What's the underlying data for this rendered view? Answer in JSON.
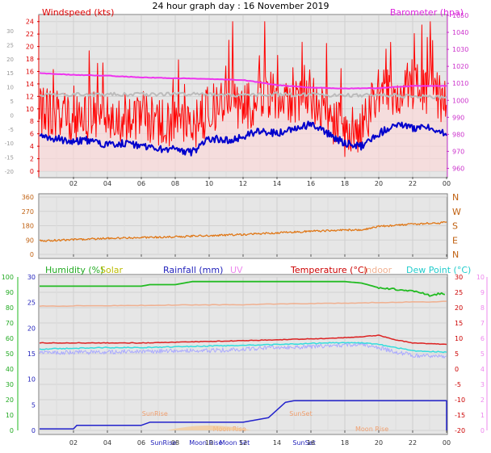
{
  "title": "24 hour graph day : 16 November 2019",
  "colors": {
    "windspeed": "#ff0000",
    "windspeed_fill": "#ffd7d7",
    "barometer": "#ee33ee",
    "gust_avg": "#bbbbbb",
    "wind_dir": "#e07818",
    "humidity": "#22bb22",
    "solar": "#cccc00",
    "rainfall": "#2222cc",
    "uv": "#ee88ee",
    "temperature": "#dd2222",
    "indoor": "#f0b090",
    "dew_point": "#33dddd",
    "panel_bg": "#e6e6e6"
  },
  "chart_data": [
    {
      "type": "line",
      "panel": "wind",
      "title": "",
      "left_axis_label": "Windspeed (kts)",
      "right_axis_label": "Barometer (hpa)",
      "x_ticks": [
        "02",
        "04",
        "06",
        "08",
        "10",
        "12",
        "14",
        "16",
        "18",
        "20",
        "22",
        "00"
      ],
      "left_axis_inner_ticks": [
        "0",
        "2",
        "4",
        "6",
        "8",
        "10",
        "12",
        "14",
        "16",
        "18",
        "20",
        "22",
        "24"
      ],
      "left_axis_outer_ticks": [
        "-20",
        "-15",
        "-10",
        "-5",
        "0",
        "5",
        "10",
        "15",
        "20",
        "25",
        "30"
      ],
      "right_axis_ticks": [
        "960",
        "970",
        "980",
        "990",
        "1000",
        "1010",
        "1020",
        "1030",
        "1040",
        "1050"
      ],
      "ylim_left": [
        0,
        25
      ],
      "ylim_right": [
        955,
        1050
      ],
      "series": [
        {
          "name": "Windspeed",
          "x_hours": [
            0,
            1,
            2,
            3,
            4,
            5,
            6,
            7,
            8,
            9,
            10,
            11,
            12,
            13,
            14,
            15,
            16,
            17,
            18,
            19,
            20,
            21,
            22,
            23,
            24
          ],
          "values": [
            9.5,
            9,
            8.5,
            9,
            8,
            8.5,
            9,
            8,
            7.5,
            6.5,
            10,
            11,
            10,
            12,
            12,
            11,
            12,
            9,
            6,
            7,
            13,
            13,
            14,
            13,
            11
          ]
        },
        {
          "name": "Barometer",
          "x_hours": [
            0,
            2,
            4,
            6,
            8,
            10,
            12,
            14,
            16,
            18,
            20,
            22,
            24
          ],
          "values": [
            1016,
            1015,
            1014.5,
            1013.5,
            1013,
            1012.5,
            1012,
            1009,
            1007.5,
            1007,
            1007.2,
            1008.5,
            1008.5
          ]
        },
        {
          "name": "Average",
          "x_hours": [
            0,
            2,
            4,
            6,
            8,
            10,
            12,
            14,
            16,
            18,
            20,
            22,
            24
          ],
          "values": [
            12.3,
            12.3,
            12.3,
            12.3,
            12.4,
            12.3,
            12.2,
            12.3,
            12.3,
            12.2,
            12.2,
            12,
            11.8
          ]
        },
        {
          "name": "Wind (lower)",
          "x_hours": [
            0,
            1,
            2,
            3,
            4,
            5,
            6,
            7,
            8,
            9,
            10,
            11,
            12,
            13,
            14,
            15,
            16,
            17,
            18,
            19,
            20,
            21,
            22,
            23,
            24
          ],
          "values": [
            5.5,
            5.2,
            4.8,
            5,
            4.2,
            4.5,
            4,
            3.5,
            3.5,
            3,
            5.3,
            5,
            5.5,
            6.5,
            6,
            7,
            7.5,
            6,
            4.5,
            4,
            6,
            7.5,
            6.8,
            7,
            6
          ]
        }
      ]
    },
    {
      "type": "line",
      "panel": "wind-direction",
      "left_axis_ticks": [
        "0",
        "90",
        "180",
        "270",
        "360"
      ],
      "right_axis_labels": [
        "N",
        "W",
        "S",
        "E",
        "N"
      ],
      "ylim": [
        0,
        360
      ],
      "series": [
        {
          "name": "Wind Direction",
          "x_hours": [
            0,
            2,
            4,
            6,
            8,
            10,
            12,
            14,
            16,
            18,
            19,
            20,
            22,
            24
          ],
          "values": [
            85,
            92,
            100,
            105,
            110,
            118,
            125,
            135,
            145,
            152,
            155,
            175,
            190,
            200
          ]
        }
      ]
    },
    {
      "type": "line",
      "panel": "temperature",
      "legend": [
        "Humidity (%)",
        "Solar",
        "Rainfall (mm)",
        "UV",
        "Temperature (°C)",
        "Indoor",
        "Dew Point (°C)"
      ],
      "left_axis_outer_ticks": [
        "0",
        "10",
        "20",
        "30",
        "40",
        "50",
        "60",
        "70",
        "80",
        "90",
        "100"
      ],
      "left_axis_inner_ticks": [
        "0",
        "5",
        "10",
        "15",
        "20",
        "25",
        "30"
      ],
      "right_axis_inner_ticks": [
        "30",
        "25",
        "20",
        "15",
        "10",
        "5",
        "0",
        "-5",
        "-10",
        "-15",
        "-20"
      ],
      "right_axis_outer_ticks": [
        "10",
        "9",
        "8",
        "7",
        "6",
        "5",
        "4",
        "3",
        "2",
        "1",
        "0"
      ],
      "ylim_temp": [
        -20,
        30
      ],
      "ylim_humidity": [
        0,
        100
      ],
      "ylim_rain": [
        0,
        30
      ],
      "annotations": [
        "SunRise",
        "SunSet",
        "Moon Rise",
        "Moon Set",
        "SunRise",
        "Moon Set",
        "SunSet",
        "Moon Rise"
      ],
      "series": [
        {
          "name": "Humidity",
          "x_hours": [
            0,
            6,
            6.5,
            8,
            9,
            18,
            19,
            20,
            21,
            22,
            22.5,
            23,
            23.5,
            24
          ],
          "values": [
            94,
            94,
            95,
            95,
            97,
            97,
            96,
            93,
            92,
            91,
            90,
            88,
            89,
            89
          ]
        },
        {
          "name": "Temperature",
          "x_hours": [
            0,
            4,
            6,
            10,
            14,
            17,
            19,
            20,
            21,
            22,
            24
          ],
          "values": [
            8.5,
            8.5,
            8.5,
            9,
            9.5,
            10,
            10.5,
            11,
            9.5,
            8.5,
            8
          ]
        },
        {
          "name": "Indoor",
          "x_hours": [
            0,
            12,
            24
          ],
          "values": [
            20.5,
            21,
            22
          ]
        },
        {
          "name": "Dew Point",
          "x_hours": [
            0,
            4,
            6,
            10,
            14,
            17,
            19,
            20,
            21,
            22,
            24
          ],
          "values": [
            6.5,
            7,
            7,
            7.5,
            8,
            8.5,
            8.5,
            8,
            7,
            6,
            5.5
          ]
        },
        {
          "name": "Dew Point (avg)",
          "x_hours": [
            0,
            4,
            6,
            10,
            14,
            17,
            19,
            20,
            21,
            22,
            24
          ],
          "values": [
            5.3,
            5.5,
            5.8,
            6,
            7,
            7.5,
            8,
            7,
            5.5,
            4.5,
            4
          ]
        },
        {
          "name": "Rainfall",
          "x_hours": [
            0,
            2,
            2.2,
            6,
            6.5,
            12,
            13.5,
            14,
            14.5,
            15,
            24,
            24
          ],
          "values": [
            0.3,
            0.3,
            1,
            1,
            1.6,
            1.6,
            2.5,
            4,
            5.5,
            5.8,
            5.8,
            0
          ]
        }
      ]
    }
  ]
}
